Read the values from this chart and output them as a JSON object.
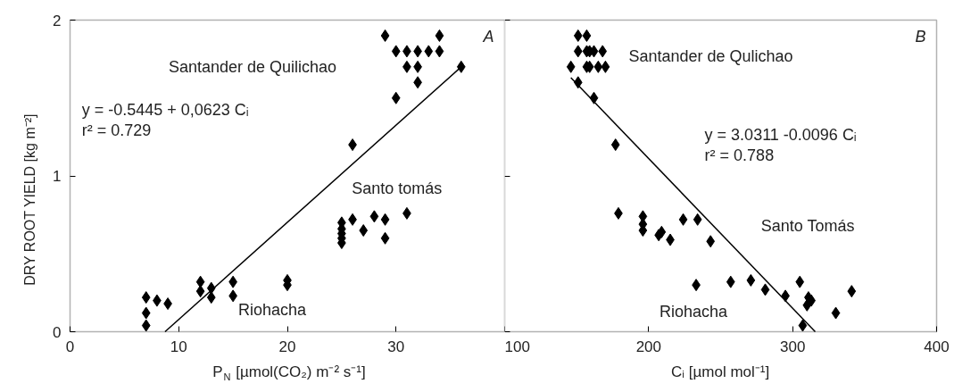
{
  "chart_data": [
    {
      "type": "scatter",
      "xlabel": "P$_{N}$ [µmol(CO₂) m⁻² s⁻¹]",
      "ylabel": "DRY ROOT YIELD  [kg m⁻²]",
      "xlim": [
        0,
        40
      ],
      "xticks": [
        0,
        10,
        20,
        30
      ],
      "ylim": [
        0,
        2
      ],
      "yticks": [
        0,
        1,
        2
      ],
      "grid": false,
      "marker": "diamond",
      "series": [
        {
          "color": "#000000",
          "x": [
            29,
            34,
            30,
            31,
            32,
            33,
            34,
            31,
            32,
            32,
            30,
            36,
            26,
            31,
            28,
            29,
            26,
            25,
            25,
            25,
            25,
            25,
            27,
            29,
            20,
            20,
            12,
            12,
            13,
            13,
            15,
            15,
            7,
            8,
            9,
            7,
            7
          ],
          "values": [
            1.9,
            1.9,
            1.8,
            1.8,
            1.8,
            1.8,
            1.8,
            1.7,
            1.7,
            1.6,
            1.5,
            1.7,
            1.2,
            0.76,
            0.74,
            0.72,
            0.72,
            0.7,
            0.66,
            0.63,
            0.6,
            0.57,
            0.65,
            0.6,
            0.33,
            0.3,
            0.32,
            0.26,
            0.28,
            0.22,
            0.32,
            0.23,
            0.22,
            0.2,
            0.18,
            0.12,
            0.04
          ]
        },
        {
          "type": "line",
          "color": "#000000",
          "marker": "none",
          "x": [
            8.74,
            36
          ],
          "values": [
            0,
            1.7
          ]
        }
      ],
      "annotations": [
        "Santander de Quilichao",
        "y = -0.5445 + 0,0623 Cᵢ\nr² = 0.729",
        "Santo tomás",
        "Riohacha",
        "A"
      ]
    },
    {
      "type": "scatter",
      "xlabel": "Cᵢ [µmol mol⁻¹]",
      "xlim": [
        100,
        400
      ],
      "xticks": [
        100,
        200,
        300,
        400
      ],
      "ylim": [
        0,
        2
      ],
      "yticks": [
        0,
        1,
        2
      ],
      "tick_labels": "x",
      "grid": false,
      "marker": "diamond",
      "series": [
        {
          "color": "#000000",
          "x": [
            151,
            157,
            151,
            157,
            159,
            162,
            168,
            146,
            157,
            159,
            165,
            170,
            151,
            162,
            177,
            179,
            196,
            196,
            196,
            207,
            209,
            215,
            224,
            234,
            243,
            233,
            257,
            271,
            281,
            295,
            305,
            311,
            313,
            310,
            330,
            341,
            307
          ],
          "values": [
            1.9,
            1.9,
            1.8,
            1.8,
            1.8,
            1.8,
            1.8,
            1.7,
            1.7,
            1.7,
            1.7,
            1.7,
            1.6,
            1.5,
            1.2,
            0.76,
            0.74,
            0.69,
            0.65,
            0.62,
            0.64,
            0.59,
            0.72,
            0.72,
            0.58,
            0.3,
            0.32,
            0.33,
            0.27,
            0.23,
            0.32,
            0.22,
            0.2,
            0.17,
            0.12,
            0.26,
            0.04
          ]
        },
        {
          "type": "line",
          "color": "#000000",
          "marker": "none",
          "x": [
            146,
            315.7
          ],
          "values": [
            1.63,
            0
          ]
        }
      ],
      "annotations": [
        "Santander de Qulichao",
        "y = 3.0311 -0.0096 Cᵢ\nr² = 0.788",
        "Santo Tomás",
        "Riohacha",
        "B"
      ]
    }
  ]
}
